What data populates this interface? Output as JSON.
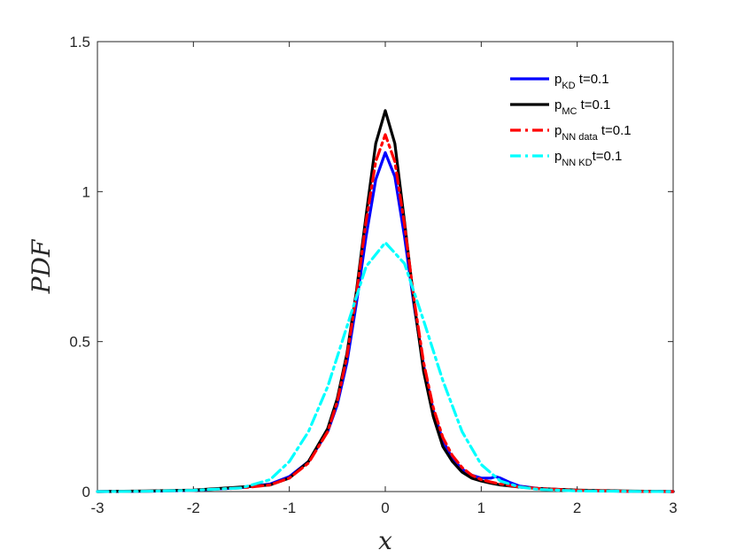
{
  "chart_data": {
    "type": "line",
    "xlabel": "x",
    "ylabel": "PDF",
    "xlim": [
      -3,
      3
    ],
    "ylim": [
      0,
      1.5
    ],
    "xticks": [
      -3,
      -2,
      -1,
      0,
      1,
      2,
      3
    ],
    "yticks": [
      0,
      0.5,
      1,
      1.5
    ],
    "xtick_labels": [
      "-3",
      "-2",
      "-1",
      "0",
      "1",
      "2",
      "3"
    ],
    "ytick_labels": [
      "0",
      "0.5",
      "1",
      "1.5"
    ],
    "grid": false,
    "legend_position": "top-right",
    "series": [
      {
        "name": "p_KD t=0.1",
        "legend": {
          "main": "p",
          "sub": "KD",
          "suffix": " t=0.1"
        },
        "color": "#0000ff",
        "style": "solid",
        "x": [
          -3,
          -2.5,
          -2,
          -1.5,
          -1.2,
          -1.0,
          -0.8,
          -0.6,
          -0.5,
          -0.4,
          -0.3,
          -0.2,
          -0.1,
          0,
          0.1,
          0.2,
          0.3,
          0.4,
          0.5,
          0.6,
          0.7,
          0.8,
          0.9,
          1.0,
          1.1,
          1.15,
          1.2,
          1.3,
          1.4,
          1.6,
          2.0,
          2.5,
          3.0
        ],
        "y": [
          0.0,
          0.001,
          0.004,
          0.013,
          0.025,
          0.05,
          0.1,
          0.2,
          0.29,
          0.43,
          0.63,
          0.85,
          1.04,
          1.13,
          1.05,
          0.85,
          0.62,
          0.42,
          0.27,
          0.17,
          0.11,
          0.075,
          0.055,
          0.045,
          0.045,
          0.05,
          0.045,
          0.03,
          0.018,
          0.01,
          0.004,
          0.001,
          0.0
        ]
      },
      {
        "name": "p_MC t=0.1",
        "legend": {
          "main": "p",
          "sub": "MC",
          "suffix": " t=0.1"
        },
        "color": "#000000",
        "style": "solid",
        "x": [
          -3,
          -2.5,
          -2,
          -1.5,
          -1.2,
          -1.0,
          -0.8,
          -0.6,
          -0.5,
          -0.4,
          -0.3,
          -0.2,
          -0.1,
          0,
          0.1,
          0.2,
          0.3,
          0.4,
          0.5,
          0.6,
          0.7,
          0.8,
          0.9,
          1.0,
          1.1,
          1.2,
          1.4,
          1.6,
          2.0,
          2.5,
          3.0
        ],
        "y": [
          0.0,
          0.002,
          0.005,
          0.015,
          0.022,
          0.045,
          0.1,
          0.21,
          0.31,
          0.46,
          0.67,
          0.92,
          1.16,
          1.27,
          1.16,
          0.9,
          0.63,
          0.4,
          0.25,
          0.15,
          0.1,
          0.065,
          0.045,
          0.035,
          0.028,
          0.022,
          0.015,
          0.01,
          0.005,
          0.002,
          0.0
        ]
      },
      {
        "name": "p_NN data t=0.1",
        "legend": {
          "main": "p",
          "sub": "NN data",
          "suffix": " t=0.1"
        },
        "color": "#ff0000",
        "style": "dashdot",
        "x": [
          -3,
          -2.5,
          -2,
          -1.5,
          -1.2,
          -1.0,
          -0.8,
          -0.6,
          -0.5,
          -0.4,
          -0.3,
          -0.2,
          -0.1,
          0,
          0.1,
          0.2,
          0.3,
          0.4,
          0.5,
          0.6,
          0.7,
          0.8,
          0.9,
          1.0,
          1.1,
          1.2,
          1.4,
          1.6,
          2.0,
          2.5,
          3.0
        ],
        "y": [
          0.0,
          0.001,
          0.004,
          0.012,
          0.022,
          0.045,
          0.095,
          0.2,
          0.3,
          0.45,
          0.66,
          0.9,
          1.1,
          1.19,
          1.1,
          0.89,
          0.64,
          0.43,
          0.28,
          0.18,
          0.12,
          0.08,
          0.055,
          0.04,
          0.032,
          0.025,
          0.015,
          0.01,
          0.004,
          0.001,
          0.0
        ]
      },
      {
        "name": "p_NN KD t=0.1",
        "legend": {
          "main": "p",
          "sub": "NN KD",
          "suffix": "t=0.1"
        },
        "color": "#00ffff",
        "style": "dashdot",
        "x": [
          -3,
          -2.5,
          -2,
          -1.5,
          -1.2,
          -1.0,
          -0.8,
          -0.6,
          -0.4,
          -0.2,
          0,
          0.2,
          0.4,
          0.6,
          0.8,
          1.0,
          1.2,
          1.4,
          1.6,
          2.0,
          2.5,
          3.0
        ],
        "y": [
          0.0,
          0.001,
          0.004,
          0.012,
          0.04,
          0.1,
          0.2,
          0.35,
          0.55,
          0.75,
          0.83,
          0.76,
          0.57,
          0.37,
          0.2,
          0.09,
          0.035,
          0.015,
          0.007,
          0.002,
          0.001,
          0.0
        ]
      }
    ]
  }
}
